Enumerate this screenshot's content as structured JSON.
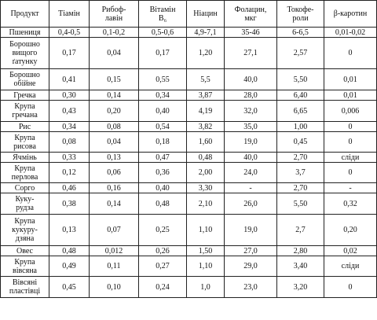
{
  "table": {
    "header": [
      "Продукт",
      "Тіамін",
      "Рибоф-\nлавін",
      "Вітамін\nB₆",
      "Ніацин",
      "Фолацин,\nмкг",
      "Токофе-\nроли",
      "β-каротин"
    ],
    "rows": [
      [
        "Пшениця",
        "0,4-0,5",
        "0,1-0,2",
        "0,5-0,6",
        "4,9-7,1",
        "35-46",
        "6-6,5",
        "0,01-0,02"
      ],
      [
        "Борошно\nвищого\nґатунку",
        "0,17",
        "0,04",
        "0,17",
        "1,20",
        "27,1",
        "2,57",
        "0"
      ],
      [
        "Борошно\nобійне",
        "0,41",
        "0,15",
        "0,55",
        "5,5",
        "40,0",
        "5,50",
        "0,01"
      ],
      [
        "Гречка",
        "0,30",
        "0,14",
        "0,34",
        "3,87",
        "28,0",
        "6,40",
        "0,01"
      ],
      [
        "Крупа\nгречана",
        "0,43",
        "0,20",
        "0,40",
        "4,19",
        "32,0",
        "6,65",
        "0,006"
      ],
      [
        "Рис",
        "0,34",
        "0,08",
        "0,54",
        "3,82",
        "35,0",
        "1,00",
        "0"
      ],
      [
        "Крупа\nрисова",
        "0,08",
        "0,04",
        "0,18",
        "1,60",
        "19,0",
        "0,45",
        "0"
      ],
      [
        "Ячмінь",
        "0,33",
        "0,13",
        "0,47",
        "0,48",
        "40,0",
        "2,70",
        "сліди"
      ],
      [
        "Крупа\nперлова",
        "0,12",
        "0,06",
        "0,36",
        "2,00",
        "24,0",
        "3,7",
        "0"
      ],
      [
        "Сорго",
        "0,46",
        "0,16",
        "0,40",
        "3,30",
        "-",
        "2,70",
        "-"
      ],
      [
        "Куку-\nрудза",
        "0,38",
        "0,14",
        "0,48",
        "2,10",
        "26,0",
        "5,50",
        "0,32"
      ],
      [
        "Крупа\nкукуру-\nдзяна",
        "0,13",
        "0,07",
        "0,25",
        "1,10",
        "19,0",
        "2,7",
        "0,20"
      ],
      [
        "Овес",
        "0,48",
        "0,012",
        "0,26",
        "1,50",
        "27,0",
        "2,80",
        "0,02"
      ],
      [
        "Крупа\nвівсяна",
        "0,49",
        "0,11",
        "0,27",
        "1,10",
        "29,0",
        "3,40",
        "сліди"
      ],
      [
        "Вівсяні\nпластівці",
        "0,45",
        "0,10",
        "0,24",
        "1,0",
        "23,0",
        "3,20",
        "0"
      ]
    ]
  }
}
